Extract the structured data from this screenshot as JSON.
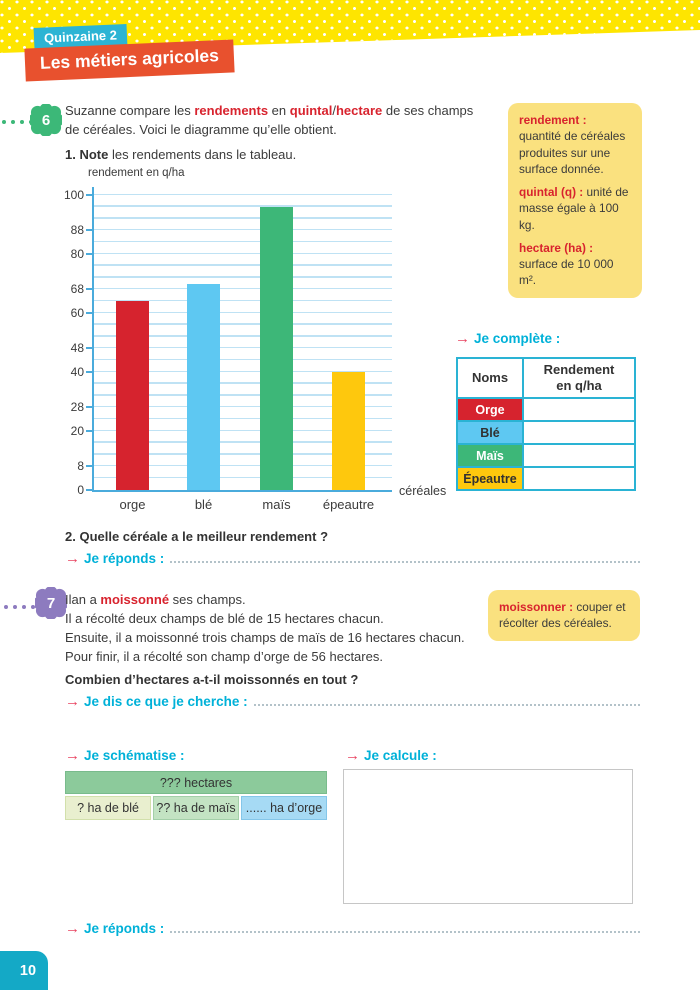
{
  "header": {
    "kicker": "Quinzaine 2",
    "title": "Les métiers agricoles"
  },
  "icons": {
    "arrow": "→"
  },
  "exercise6": {
    "number": "6",
    "intro": {
      "s1": "Suzanne compare les ",
      "s2": "rendements",
      "s3": " en ",
      "s4": "quintal",
      "s5": "/",
      "s6": "hectare",
      "s7": " de ses champs",
      "line2": "de céréales. Voici le diagramme qu’elle obtient."
    },
    "step1_bold": "1. Note",
    "step1_rest": " les rendements dans le tableau.",
    "question2": "2. Quelle céréale a le meilleur rendement ?"
  },
  "chart_data": {
    "type": "bar",
    "title": "rendement en q/ha",
    "ylabel": "rendement en q/ha",
    "xlabel": "céréales",
    "categories": [
      "orge",
      "blé",
      "maïs",
      "épeautre"
    ],
    "values": [
      64,
      70,
      96,
      40
    ],
    "colors": [
      "#d6232e",
      "#5ec8f2",
      "#3db778",
      "#fec80d"
    ],
    "ylim": [
      0,
      100
    ],
    "grid_step": 4,
    "labeled_ticks": [
      0,
      8,
      20,
      28,
      40,
      48,
      60,
      68,
      80,
      88,
      100
    ],
    "grid": "on",
    "legend": "none"
  },
  "definitions": {
    "items": [
      {
        "term": "rendement :",
        "text": " quantité de céréales produites sur une surface donnée."
      },
      {
        "term": "quintal (q) :",
        "text": " unité de masse égale à 100 kg."
      },
      {
        "term": "hectare (ha) :",
        "text": " surface de 10 000 m²."
      }
    ]
  },
  "je_complete": {
    "label": "Je complète :",
    "table": {
      "col1": "Noms",
      "col2a": "Rendement",
      "col2b": "en q/ha",
      "rows": [
        {
          "name": "Orge",
          "bg": "#d6232e",
          "fg": "#ffffff",
          "value": ""
        },
        {
          "name": "Blé",
          "bg": "#5ec8f2",
          "fg": "#313131",
          "value": ""
        },
        {
          "name": "Maïs",
          "bg": "#3db778",
          "fg": "#ffffff",
          "value": ""
        },
        {
          "name": "Épeautre",
          "bg": "#fec80d",
          "fg": "#313131",
          "value": ""
        }
      ]
    }
  },
  "prompts": {
    "je_reponds": "Je réponds :",
    "je_cherche": "Je dis ce que je cherche :",
    "je_schematise": "Je schématise :",
    "je_calcule": "Je calcule :"
  },
  "exercise7": {
    "number": "7",
    "line1_pre": "Ilan a ",
    "line1_red": "moissonné",
    "line1_post": " ses champs.",
    "line2": "Il a récolté deux champs de blé de 15 hectares chacun.",
    "line3": "Ensuite, il a moissonné trois champs de maïs de 16 hectares chacun.",
    "line4": "Pour finir, il a récolté son champ d’orge de 56 hectares.",
    "question": "Combien d’hectares a-t-il moissonnés en tout ?",
    "definition": {
      "term": "moissonner :",
      "text": " couper et récolter des céréales."
    }
  },
  "schema": {
    "total": "??? hectares",
    "total_bg": "#8cca9b",
    "total_border": "#79bb8c",
    "cells": [
      {
        "label": "?  ha de blé",
        "bg": "#e9efcf",
        "border": "#d2e0ab"
      },
      {
        "label": "?? ha de maïs",
        "bg": "#c3e3c3",
        "border": "#a3cfa8"
      },
      {
        "label": "...... ha d’orge",
        "bg": "#a6daf4",
        "border": "#84c6e9"
      }
    ]
  },
  "page_number": "10",
  "colors": {
    "accent_cyan": "#00b1d8",
    "accent_red": "#d8232e",
    "arrow": "#e94360",
    "badge6": "#3cb878",
    "badge7": "#8d7bbf"
  }
}
